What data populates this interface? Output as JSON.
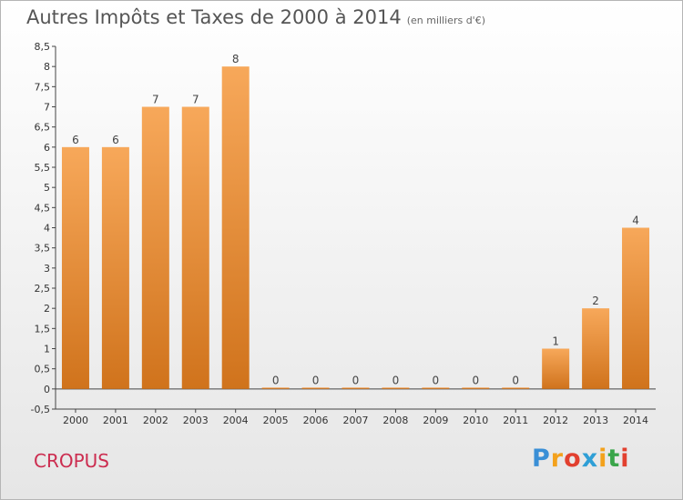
{
  "header": {
    "title": "Autres Impôts et Taxes de 2000 à 2014",
    "unit": "(en milliers d'€)"
  },
  "footer": {
    "commune": "CROPUS",
    "logo_letters": [
      "P",
      "r",
      "o",
      "x",
      "i",
      "t",
      "i"
    ],
    "logo_colors": [
      "#3a8fd6",
      "#f3a11c",
      "#e2402f",
      "#2f9fd6",
      "#f3a11c",
      "#3aa54a",
      "#e2402f"
    ]
  },
  "chart_data": {
    "type": "bar",
    "title": "Autres Impôts et Taxes de 2000 à 2014",
    "categories": [
      "2000",
      "2001",
      "2002",
      "2003",
      "2004",
      "2005",
      "2006",
      "2007",
      "2008",
      "2009",
      "2010",
      "2011",
      "2012",
      "2013",
      "2014"
    ],
    "values": [
      6,
      6,
      7,
      7,
      8,
      0,
      0,
      0,
      0,
      0,
      0,
      0,
      1,
      2,
      4
    ],
    "data_labels": [
      "6",
      "6",
      "7",
      "7",
      "8",
      "0",
      "0",
      "0",
      "0",
      "0",
      "0",
      "0",
      "1",
      "2",
      "4"
    ],
    "ylim": [
      -0.5,
      8.5
    ],
    "yticks": [
      "-0,5",
      "0",
      "0,5",
      "1",
      "1,5",
      "2",
      "2,5",
      "3",
      "3,5",
      "4",
      "4,5",
      "5",
      "5,5",
      "6",
      "6,5",
      "7",
      "7,5",
      "8",
      "8,5"
    ],
    "ytick_values": [
      -0.5,
      0,
      0.5,
      1,
      1.5,
      2,
      2.5,
      3,
      3.5,
      4,
      4.5,
      5,
      5.5,
      6,
      6.5,
      7,
      7.5,
      8,
      8.5
    ],
    "grid": false,
    "bar_color_top": "#f7a85a",
    "bar_color_bottom": "#d0731c"
  }
}
